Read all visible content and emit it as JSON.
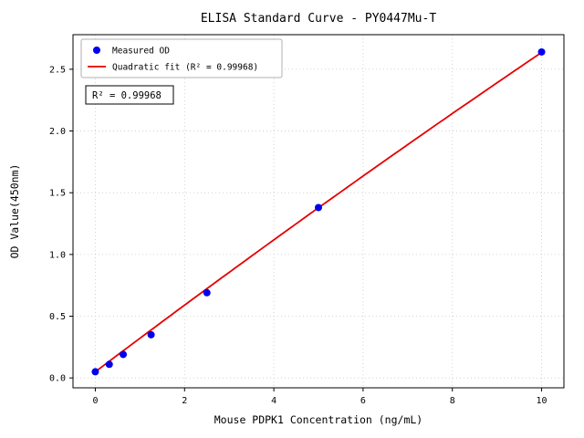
{
  "chart_data": {
    "type": "scatter",
    "title": "ELISA Standard Curve - PY0447Mu-T",
    "xlabel": "Mouse PDPK1 Concentration (ng/mL)",
    "ylabel": "OD Value(450nm)",
    "xlim": [
      -0.5,
      10.5
    ],
    "ylim": [
      -0.08,
      2.78
    ],
    "xticks": [
      0,
      2,
      4,
      6,
      8,
      10
    ],
    "xtick_labels": [
      "0",
      "2",
      "4",
      "6",
      "8",
      "10"
    ],
    "yticks": [
      0.0,
      0.5,
      1.0,
      1.5,
      2.0,
      2.5
    ],
    "ytick_labels": [
      "0.0",
      "0.5",
      "1.0",
      "1.5",
      "2.0",
      "2.5"
    ],
    "grid": true,
    "annotation": "R² = 0.99968",
    "legend": {
      "position": "upper-left",
      "entries": [
        {
          "label": "Measured OD",
          "marker": "dot",
          "color": "#0000ee"
        },
        {
          "label": "Quadratic fit (R² = 0.99968)",
          "marker": "line",
          "color": "#e60000"
        }
      ]
    },
    "series": [
      {
        "name": "Measured OD",
        "type": "scatter",
        "color": "#0000ee",
        "x": [
          0,
          0.3125,
          0.625,
          1.25,
          2.5,
          5,
          10
        ],
        "y": [
          0.05,
          0.11,
          0.19,
          0.35,
          0.69,
          1.38,
          2.64
        ]
      },
      {
        "name": "Quadratic fit",
        "type": "line",
        "color": "#e60000",
        "fit_coeffs": {
          "a": -0.0014,
          "b": 0.2726,
          "c": 0.05
        },
        "x_range": [
          0,
          10
        ]
      }
    ]
  }
}
